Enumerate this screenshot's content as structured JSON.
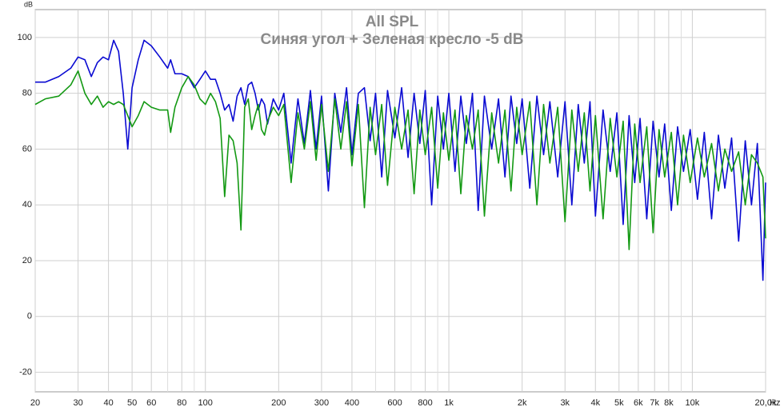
{
  "chart_data": {
    "type": "line",
    "title": "All SPL",
    "subtitle": "Синяя угол + Зеленая кресло -5 dB",
    "y_label": "dB",
    "x_unit": "Hz",
    "log_x": true,
    "grid": true,
    "xlim": [
      20,
      20000
    ],
    "ylim": [
      -27,
      110
    ],
    "yticks": [
      -20,
      0,
      20,
      40,
      60,
      80,
      100
    ],
    "xticks": [
      20,
      30,
      40,
      50,
      60,
      80,
      100,
      200,
      300,
      400,
      600,
      800,
      {
        "value": 1000,
        "label": "1k"
      },
      {
        "value": 2000,
        "label": "2k"
      },
      {
        "value": 3000,
        "label": "3k"
      },
      {
        "value": 4000,
        "label": "4k"
      },
      {
        "value": 5000,
        "label": "5k"
      },
      {
        "value": 6000,
        "label": "6k"
      },
      {
        "value": 7000,
        "label": "7k"
      },
      {
        "value": 8000,
        "label": "8k"
      },
      {
        "value": 10000,
        "label": "10k"
      },
      {
        "value": 20000,
        "label": "20,0k"
      }
    ],
    "xminorticks": [
      70,
      90,
      500,
      700,
      900,
      9000
    ],
    "x": [
      20,
      22,
      25,
      28,
      30,
      32,
      34,
      36,
      38,
      40,
      42,
      44,
      46,
      48,
      50,
      53,
      56,
      60,
      65,
      70,
      72,
      75,
      80,
      85,
      90,
      95,
      100,
      105,
      110,
      115,
      120,
      125,
      130,
      135,
      140,
      145,
      150,
      155,
      160,
      165,
      170,
      175,
      180,
      190,
      200,
      210,
      225,
      240,
      255,
      270,
      285,
      300,
      320,
      340,
      360,
      380,
      400,
      425,
      450,
      475,
      500,
      530,
      560,
      600,
      640,
      680,
      720,
      760,
      800,
      850,
      900,
      950,
      1000,
      1060,
      1120,
      1180,
      1250,
      1320,
      1400,
      1500,
      1600,
      1700,
      1800,
      1900,
      2000,
      2150,
      2300,
      2450,
      2600,
      2800,
      3000,
      3200,
      3400,
      3600,
      3800,
      4000,
      4300,
      4600,
      4900,
      5200,
      5500,
      5800,
      6100,
      6500,
      6900,
      7300,
      7700,
      8200,
      8700,
      9200,
      9800,
      10500,
      11200,
      12000,
      12800,
      13600,
      14500,
      15500,
      16500,
      17500,
      18500,
      19500,
      20000
    ],
    "series": [
      {
        "color": "#0a0ad2",
        "values": [
          84,
          84,
          86,
          89,
          93,
          92,
          86,
          91,
          93,
          92,
          99,
          95,
          80,
          60,
          82,
          92,
          99,
          97,
          93,
          89,
          92,
          87,
          87,
          86,
          82,
          85,
          88,
          85,
          85,
          80,
          74,
          76,
          70,
          79,
          82,
          76,
          83,
          84,
          80,
          74,
          78,
          76,
          69,
          78,
          74,
          80,
          55,
          78,
          62,
          81,
          60,
          79,
          45,
          80,
          66,
          82,
          58,
          80,
          82,
          63,
          80,
          50,
          81,
          64,
          82,
          57,
          80,
          62,
          81,
          40,
          79,
          60,
          80,
          52,
          79,
          62,
          80,
          38,
          79,
          60,
          78,
          50,
          79,
          62,
          78,
          46,
          79,
          58,
          77,
          50,
          77,
          40,
          76,
          55,
          77,
          36,
          74,
          52,
          73,
          33,
          72,
          48,
          71,
          35,
          70,
          50,
          69,
          38,
          68,
          52,
          67,
          42,
          66,
          35,
          65,
          46,
          64,
          27,
          63,
          40,
          62,
          13,
          48
        ]
      },
      {
        "color": "#139913",
        "values": [
          76,
          78,
          79,
          83,
          88,
          80,
          76,
          79,
          75,
          77,
          76,
          77,
          76,
          72,
          68,
          72,
          77,
          75,
          74,
          74,
          66,
          75,
          82,
          86,
          83,
          78,
          76,
          80,
          77,
          71,
          43,
          65,
          63,
          55,
          31,
          75,
          78,
          67,
          72,
          76,
          67,
          65,
          70,
          75,
          72,
          76,
          48,
          73,
          60,
          77,
          56,
          76,
          52,
          78,
          60,
          77,
          54,
          76,
          39,
          75,
          58,
          76,
          47,
          75,
          60,
          74,
          44,
          74,
          58,
          75,
          46,
          73,
          56,
          74,
          44,
          72,
          60,
          74,
          36,
          73,
          55,
          74,
          45,
          75,
          58,
          77,
          40,
          76,
          55,
          75,
          34,
          74,
          52,
          73,
          45,
          72,
          35,
          71,
          50,
          70,
          24,
          69,
          48,
          68,
          30,
          67,
          50,
          66,
          40,
          65,
          48,
          64,
          50,
          62,
          45,
          60,
          52,
          59,
          40,
          58,
          55,
          50,
          28
        ]
      }
    ]
  }
}
